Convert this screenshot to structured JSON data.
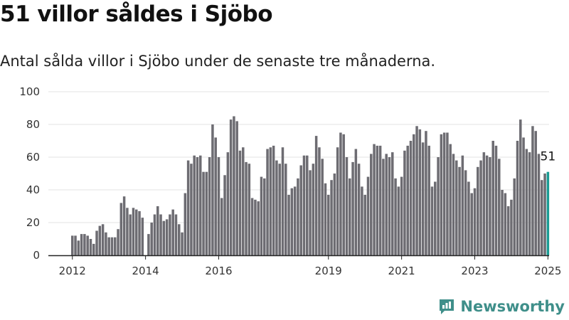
{
  "header": {
    "title": "51 villor såldes i Sjöbo",
    "subtitle": "Antal sålda villor i Sjöbo under de senaste tre månaderna."
  },
  "brand": {
    "name": "Newsworthy",
    "color": "#3f8f8a",
    "logo_icon": "newsworthy-logo-icon"
  },
  "colors": {
    "bar": "#6d6c72",
    "highlight": "#1a9c94",
    "grid": "#e3e3e3",
    "axis": "#222222"
  },
  "chart_data": {
    "type": "bar",
    "title": "",
    "xlabel": "",
    "ylabel": "",
    "ylim": [
      0,
      100
    ],
    "yticks": [
      0,
      20,
      40,
      60,
      80,
      100
    ],
    "x_start": "2012-01",
    "xtick_labels": [
      "2012",
      "2014",
      "2016",
      "2019",
      "2021",
      "2023",
      "2025"
    ],
    "xtick_months": [
      "2012-01",
      "2014-01",
      "2016-01",
      "2019-01",
      "2021-01",
      "2023-01",
      "2025-01"
    ],
    "highlight_last": true,
    "last_label": "51",
    "values": [
      12,
      12,
      9,
      13,
      13,
      12,
      10,
      7,
      15,
      18,
      19,
      14,
      11,
      11,
      11,
      16,
      32,
      36,
      29,
      25,
      29,
      28,
      27,
      23,
      0,
      13,
      20,
      25,
      30,
      25,
      21,
      22,
      25,
      28,
      25,
      19,
      14,
      38,
      58,
      56,
      61,
      60,
      61,
      51,
      51,
      60,
      80,
      72,
      60,
      35,
      49,
      63,
      83,
      85,
      82,
      64,
      66,
      57,
      56,
      35,
      34,
      33,
      48,
      47,
      65,
      66,
      67,
      58,
      56,
      66,
      56,
      37,
      41,
      42,
      47,
      55,
      61,
      61,
      52,
      56,
      73,
      66,
      59,
      44,
      37,
      46,
      50,
      66,
      75,
      74,
      60,
      47,
      57,
      65,
      56,
      42,
      37,
      48,
      62,
      68,
      67,
      67,
      59,
      62,
      60,
      63,
      47,
      42,
      48,
      64,
      67,
      70,
      74,
      79,
      77,
      69,
      76,
      67,
      42,
      45,
      60,
      74,
      75,
      75,
      68,
      62,
      58,
      54,
      61,
      52,
      45,
      38,
      41,
      54,
      58,
      63,
      61,
      60,
      70,
      67,
      59,
      40,
      38,
      30,
      34,
      47,
      70,
      83,
      72,
      65,
      63,
      79,
      76,
      62,
      46,
      50,
      51
    ],
    "bar_months": "monthly from 2012-01 to 2025-01"
  }
}
